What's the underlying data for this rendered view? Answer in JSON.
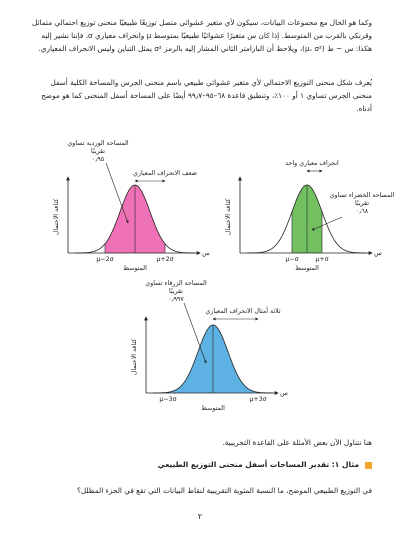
{
  "paragraphs": [
    "وكما هو الحال مع مجموعات البيانات، سيكون لأي متغير عشوائي متصل توزيعًا طبيعيًا منحنى توزيع احتمالي متماثل وقرنكي بالقرب من المتوسط. إذا كان س متغيرًا عشوائيًا طبيعيًا بمتوسط μ وانحراف معياري σ، فإننا نشير إليه هكذا: س ~ ط (μ، σ²)، ويلاحظ أن البارامتر الثاني المشار إليه بالرمز σ² يمثل التباين وليس الانحراف المعياري.",
    "يُعرف شكل منحنى التوزيع الاحتمالي لأي متغير عشوائي طبيعي باسم منحنى الجرس والمساحة الكلية أسفل منحنى الجرس تساوي ١ أو ١٠٠٪، وتنطبق قاعدة ٦٨–٩٥–٩٩٫٧ أيضًا على المساحة أسفل المنحنى كما هو موضح أدناه."
  ],
  "figures": [
    {
      "std_label": "ضعف الانحراف المعياري",
      "area_label": [
        "المساحة الوردية تساوي",
        "تقريبًا",
        "٠٫٩٥"
      ],
      "y_label": "كثافة الاحتمال",
      "x_label": "س",
      "left_tick": "μ−2σ",
      "right_tick": "μ+2σ",
      "mean_label": "المتوسط"
    },
    {
      "std_label": "انحراف معياري واحد",
      "area_label": [
        "المساحة الخضراء تساوي",
        "تقريبًا",
        "٠٫٦٨"
      ],
      "y_label": "كثافة الاحتمال",
      "x_label": "س",
      "left_tick": "μ−σ",
      "right_tick": "μ+σ",
      "mean_label": "المتوسط"
    },
    {
      "std_label": "ثلاثة أمثال الانحراف المعياري",
      "area_label": [
        "المساحة الزرقاء تساوي",
        "تقريبًا",
        "٠٫٩٩٧"
      ],
      "y_label": "كثافة الاحتمال",
      "x_label": "س",
      "left_tick": "μ−3σ",
      "right_tick": "μ+3σ",
      "mean_label": "المتوسط"
    }
  ],
  "intro": "هنا نتناول الآن بعض الأمثلة على القاعدة التجريبية.",
  "example": {
    "title": "مثال ١: تقدير المساحات أسفل منحنى التوزيع الطبيعي",
    "question": "في التوزيع الطبيعي الموضح، ما النسبة المئوية التقريبية لنقاط البيانات التي تقع في الجزء المظلل؟"
  },
  "page_number": "٢"
}
